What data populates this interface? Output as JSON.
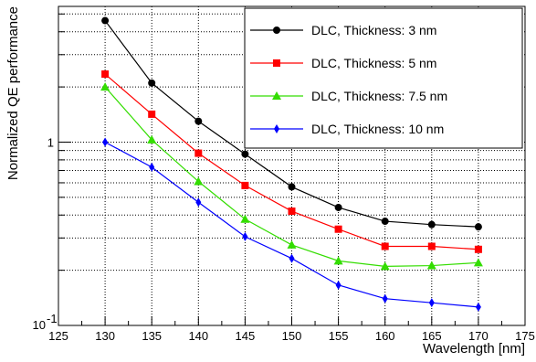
{
  "chart_data": {
    "type": "line",
    "xlabel": "Wavelength [nm]",
    "ylabel": "Normalized QE performance",
    "xlim": [
      125,
      175
    ],
    "ylim": [
      0.1,
      5.5
    ],
    "yscale": "log",
    "grid": true,
    "legend_position": "top-right",
    "x_ticks": [
      "125",
      "130",
      "135",
      "140",
      "145",
      "150",
      "155",
      "160",
      "165",
      "170",
      "175"
    ],
    "y_major_ticks": [
      {
        "base": "10",
        "exp": "-1"
      },
      {
        "base": "1",
        "exp": ""
      }
    ],
    "x": [
      130,
      135,
      140,
      145,
      150,
      155,
      160,
      165,
      170
    ],
    "series": [
      {
        "name": "DLC, Thickness: 3 nm",
        "color": "#000000",
        "marker": "circle",
        "values": [
          4.6,
          2.1,
          1.3,
          0.86,
          0.57,
          0.44,
          0.37,
          0.355,
          0.345
        ]
      },
      {
        "name": "DLC, Thickness: 5 nm",
        "color": "#ff0000",
        "marker": "square",
        "values": [
          2.35,
          1.42,
          0.87,
          0.58,
          0.42,
          0.335,
          0.27,
          0.27,
          0.26
        ]
      },
      {
        "name": "DLC, Thickness: 7.5 nm",
        "color": "#33dd00",
        "marker": "triangle",
        "values": [
          2.0,
          1.03,
          0.61,
          0.38,
          0.275,
          0.225,
          0.21,
          0.212,
          0.22
        ]
      },
      {
        "name": "DLC, Thickness: 10 nm",
        "color": "#0000ff",
        "marker": "diamond",
        "values": [
          1.0,
          0.73,
          0.47,
          0.305,
          0.232,
          0.166,
          0.14,
          0.133,
          0.126
        ]
      }
    ]
  }
}
